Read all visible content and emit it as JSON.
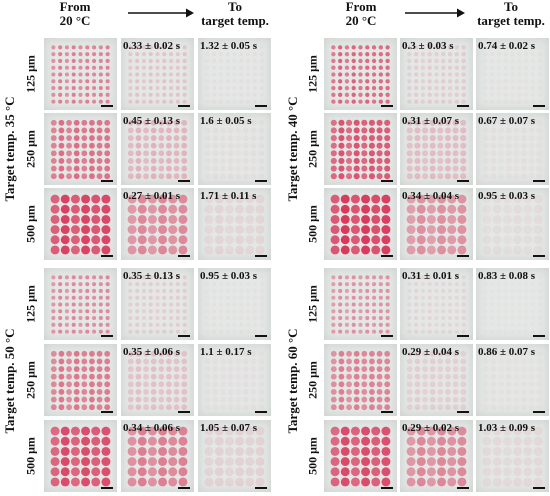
{
  "header": {
    "from_line1": "From",
    "from_line2": "20 °C",
    "to_line1": "To",
    "to_line2": "target temp."
  },
  "sizes": [
    "125 μm",
    "250 μm",
    "500 μm"
  ],
  "groups": [
    {
      "label": "Target temp. 35 °C",
      "times": [
        "0.33 ± 0.02 s",
        "1.32 ± 0.05 s",
        "0.45 ± 0.13 s",
        "1.6 ± 0.05 s",
        "0.27 ± 0.01 s",
        "1.71 ± 0.11 s"
      ]
    },
    {
      "label": "Target temp. 40 °C",
      "times": [
        "0.3 ± 0.03 s",
        "0.74 ± 0.02 s",
        "0.31 ± 0.07 s",
        "0.67 ± 0.07 s",
        "0.34 ± 0.04 s",
        "0.95 ± 0.03 s"
      ]
    },
    {
      "label": "Target temp. 50 °C",
      "times": [
        "0.35 ± 0.13 s",
        "0.95 ± 0.03 s",
        "0.35 ± 0.06 s",
        "1.1 ± 0.17 s",
        "0.34 ± 0.06 s",
        "1.05 ± 0.07 s"
      ]
    },
    {
      "label": "Target temp. 60 °C",
      "times": [
        "0.31 ± 0.01 s",
        "0.83 ± 0.08 s",
        "0.29 ± 0.04 s",
        "0.86 ± 0.07 s",
        "0.29 ± 0.02 s",
        "1.03 ± 0.09 s"
      ]
    }
  ],
  "colors": {
    "pattern": "#d83a5c",
    "background": "#e4e7e5",
    "scalebar": "#111111"
  }
}
